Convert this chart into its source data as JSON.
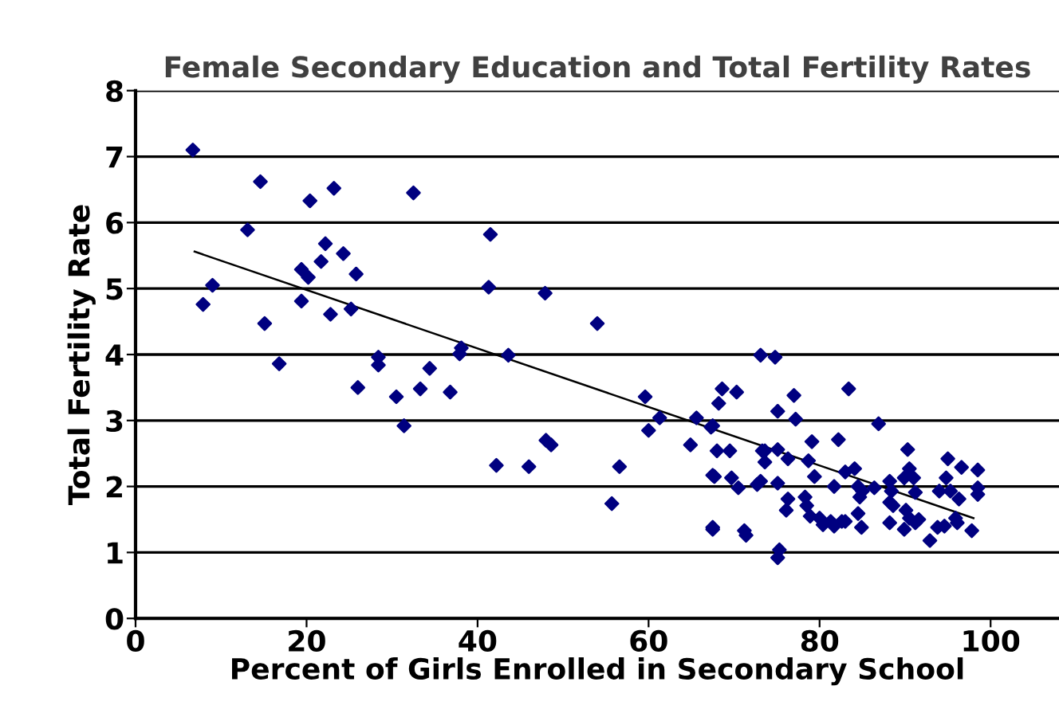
{
  "chart_data": {
    "type": "scatter",
    "title": "Female Secondary Education and Total Fertility Rates",
    "xlabel": "Percent of Girls Enrolled in Secondary School",
    "ylabel": "Total Fertility Rate",
    "xlim": [
      0,
      108
    ],
    "xticks": [
      0,
      20,
      40,
      60,
      80,
      100
    ],
    "ylim": [
      0,
      8
    ],
    "yticks": [
      0,
      1,
      2,
      3,
      4,
      5,
      6,
      7,
      8
    ],
    "grid": "y",
    "legend": false,
    "series": [
      {
        "marker": "diamond",
        "color": "#000080",
        "x": [
          6.7,
          14.6,
          20.4,
          23.2,
          32.5,
          13.1,
          22.2,
          24.3,
          21.7,
          19.4,
          20.2,
          25.8,
          9,
          7.9,
          19.4,
          22.8,
          25.2,
          15.1,
          16.8,
          26,
          28.4,
          28.4,
          34.4,
          33.3,
          36.8,
          38.1,
          37.9,
          30.5,
          31.4,
          41.5,
          41.3,
          47.9,
          54,
          43.6,
          42.2,
          46,
          48,
          48.6,
          56.6,
          55.7,
          59.6,
          61.3,
          60,
          65.6,
          64.9,
          67.5,
          67.5,
          67.5,
          73.1,
          74.8,
          68.6,
          70.3,
          68.2,
          77,
          75.1,
          77.2,
          83.4,
          86.9,
          67.3,
          68.0,
          69.5,
          73.3,
          73.6,
          75.1,
          73.6,
          76.3,
          79.1,
          78.7,
          82.2,
          83.0,
          84.1,
          79.4,
          90.3,
          90.5,
          95,
          96.6,
          98.5,
          67.7,
          69.7,
          70.5,
          72.7,
          73.1,
          75.1,
          76.3,
          76.1,
          78.3,
          78.5,
          78.9,
          80,
          80.4,
          81.3,
          81.7,
          82.6,
          83,
          81.7,
          84.5,
          84.7,
          85,
          84.5,
          84.9,
          86.4,
          88.2,
          88.4,
          88.2,
          88.6,
          88.2,
          89.9,
          91,
          91.2,
          90.1,
          90.5,
          91.2,
          91.6,
          89.9,
          92.9,
          93.8,
          94.6,
          94,
          95.3,
          96.3,
          94.8,
          95.9,
          96.1,
          98.5,
          98.5,
          97.8,
          67.5,
          71.2,
          71.4,
          75.3,
          75.1
        ],
        "values": [
          7.1,
          6.62,
          6.33,
          6.52,
          6.45,
          5.89,
          5.68,
          5.53,
          5.41,
          5.29,
          5.17,
          5.22,
          5.05,
          4.76,
          4.81,
          4.61,
          4.69,
          4.47,
          3.86,
          3.5,
          3.96,
          3.84,
          3.79,
          3.48,
          3.43,
          4.1,
          4.01,
          3.36,
          2.92,
          5.82,
          5.02,
          4.93,
          4.47,
          3.99,
          2.32,
          2.3,
          2.7,
          2.63,
          2.3,
          1.74,
          3.36,
          3.04,
          2.85,
          3.04,
          2.63,
          2.92,
          2.17,
          1.35,
          3.99,
          3.96,
          3.48,
          3.43,
          3.26,
          3.38,
          3.14,
          3.02,
          3.48,
          2.95,
          2.9,
          2.54,
          2.54,
          2.54,
          2.54,
          2.56,
          2.37,
          2.42,
          2.68,
          2.39,
          2.71,
          2.22,
          2.27,
          2.15,
          2.56,
          2.27,
          2.42,
          2.29,
          2.25,
          2.15,
          2.13,
          1.98,
          2.03,
          2.08,
          2.05,
          1.81,
          1.64,
          1.84,
          1.71,
          1.55,
          1.52,
          1.42,
          1.47,
          1.4,
          1.47,
          1.47,
          2.0,
          2.0,
          1.84,
          1.93,
          1.59,
          1.38,
          1.98,
          2.08,
          1.93,
          1.76,
          1.71,
          1.45,
          2.13,
          2.13,
          1.91,
          1.64,
          1.52,
          1.45,
          1.5,
          1.35,
          1.18,
          1.38,
          1.4,
          1.93,
          1.93,
          1.81,
          2.13,
          1.52,
          1.45,
          1.98,
          1.88,
          1.33,
          1.38,
          1.33,
          1.26,
          1.04,
          0.92
        ]
      },
      {
        "type": "line",
        "marker": "none",
        "line_style": "solid",
        "color": "#000000",
        "x": [
          6.9,
          98
        ],
        "values": [
          5.56,
          1.52
        ]
      }
    ]
  }
}
